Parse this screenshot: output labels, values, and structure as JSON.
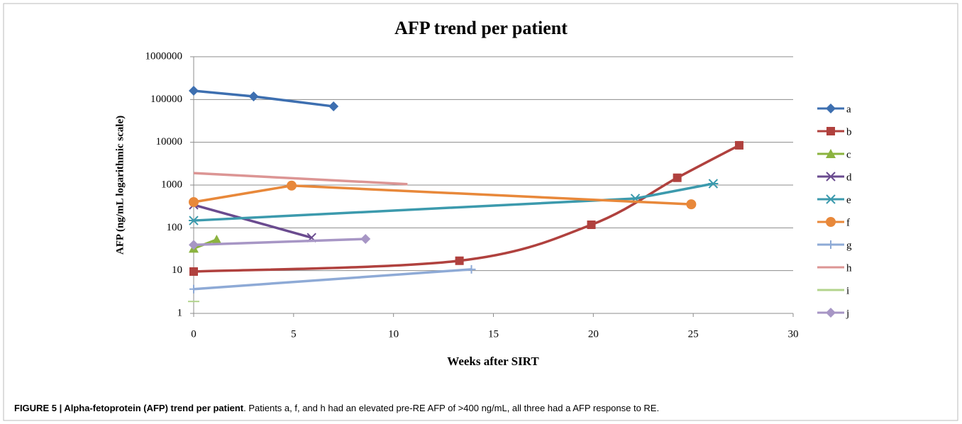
{
  "chart_data": {
    "type": "line",
    "title": "AFP trend per patient",
    "x_label": "Weeks after SIRT",
    "y_label": "AFP (ng/mL logarithmic scale)",
    "xlim": [
      0,
      30
    ],
    "xticks": [
      0,
      5,
      10,
      15,
      20,
      25,
      30
    ],
    "ylim": [
      1,
      1000000
    ],
    "yticks": [
      1,
      10,
      100,
      1000,
      10000,
      100000,
      1000000
    ],
    "log_y": true,
    "grid": true,
    "legend": "right",
    "series": [
      {
        "name": "a",
        "color": "#3d6fb0",
        "marker": "diamond",
        "x": [
          0,
          3,
          7
        ],
        "values": [
          160000,
          118000,
          69000
        ]
      },
      {
        "name": "b",
        "color": "#b0413e",
        "marker": "square",
        "smooth": true,
        "x": [
          0,
          13.3,
          19.9,
          24.2,
          27.3
        ],
        "values": [
          9.5,
          17,
          118,
          1480,
          8500
        ]
      },
      {
        "name": "c",
        "color": "#8bb33f",
        "marker": "triangle",
        "x": [
          0,
          1.15
        ],
        "values": [
          33,
          53
        ]
      },
      {
        "name": "d",
        "color": "#6a4b8f",
        "marker": "x",
        "x": [
          0,
          5.9
        ],
        "values": [
          345,
          59
        ]
      },
      {
        "name": "e",
        "color": "#3c9aad",
        "marker": "asterisk",
        "x": [
          0,
          22.1,
          26
        ],
        "values": [
          148,
          485,
          1080
        ]
      },
      {
        "name": "f",
        "color": "#e8883a",
        "marker": "circle",
        "x": [
          0,
          4.9,
          24.9
        ],
        "values": [
          400,
          970,
          355
        ]
      },
      {
        "name": "g",
        "color": "#8eaad6",
        "marker": "plus",
        "x": [
          0,
          13.9
        ],
        "values": [
          3.7,
          10.7
        ]
      },
      {
        "name": "h",
        "color": "#dc9594",
        "marker": "none",
        "x": [
          0,
          10.7
        ],
        "values": [
          1900,
          1050
        ]
      },
      {
        "name": "i",
        "color": "#b3d48c",
        "marker": "dash",
        "x": [
          0
        ],
        "values": [
          1.9
        ]
      },
      {
        "name": "j",
        "color": "#a796c5",
        "marker": "diamond",
        "x": [
          0,
          8.6
        ],
        "values": [
          40,
          55
        ]
      }
    ]
  },
  "caption": {
    "bold": "FIGURE 5 | Alpha-fetoprotein (AFP) trend per patient",
    "text": ". Patients a, f, and h had an elevated pre-RE AFP of >400 ng/mL, all three had a AFP response to RE."
  }
}
